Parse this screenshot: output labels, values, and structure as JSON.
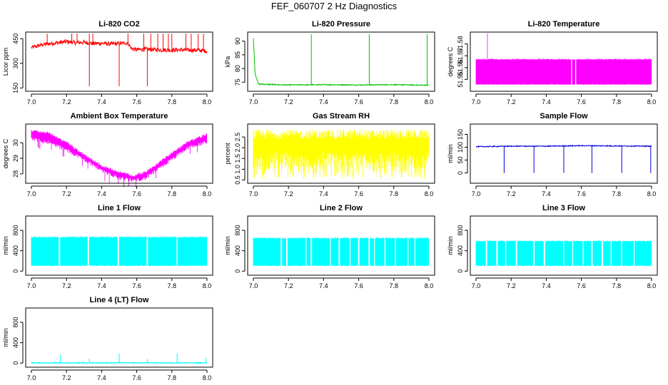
{
  "figure_title": "FEF_060707  2 Hz Diagnostics",
  "chart_data": [
    {
      "type": "line",
      "title": "Li-820 CO2",
      "ylabel": "Licor ppm",
      "xlabel": "",
      "color": "#ff0000",
      "xlim": [
        7.0,
        8.0
      ],
      "ylim": [
        130,
        490
      ],
      "xticks": [
        "7.0",
        "7.2",
        "7.4",
        "7.6",
        "7.8",
        "8.0"
      ],
      "yticks": [
        "150",
        "300",
        "450"
      ],
      "series": [
        {
          "name": "CO2",
          "x": [
            7.0,
            7.05,
            7.1,
            7.15,
            7.2,
            7.25,
            7.3,
            7.35,
            7.4,
            7.45,
            7.5,
            7.55,
            7.57,
            7.6,
            7.65,
            7.7,
            7.75,
            7.8,
            7.85,
            7.9,
            7.95,
            8.0
          ],
          "y": [
            395,
            410,
            420,
            425,
            432,
            425,
            428,
            420,
            422,
            418,
            420,
            425,
            390,
            383,
            385,
            383,
            382,
            380,
            382,
            380,
            380,
            375
          ]
        }
      ],
      "spikes_up": [
        7.09,
        7.23,
        7.26,
        7.33,
        7.35,
        7.55,
        7.64,
        7.68,
        7.72,
        7.75,
        7.78,
        7.8,
        7.88,
        7.91,
        7.95,
        7.98
      ],
      "spikes_down": [
        7.33,
        7.5,
        7.66
      ],
      "spike_low_value": 160,
      "spike_high_value": 480
    },
    {
      "type": "line",
      "title": "Li-820 Pressure",
      "ylabel": "kPa",
      "xlabel": "",
      "color": "#00c000",
      "xlim": [
        7.0,
        8.0
      ],
      "ylim": [
        71.7,
        93.3
      ],
      "xticks": [
        "7.0",
        "7.2",
        "7.4",
        "7.6",
        "7.8",
        "8.0"
      ],
      "yticks": [
        "75",
        "80",
        "85",
        "90"
      ],
      "series": [
        {
          "name": "Pressure",
          "x": [
            7.0,
            7.01,
            7.03,
            7.2,
            7.4,
            7.6,
            7.8,
            8.0
          ],
          "y": [
            91,
            78,
            74.3,
            74.0,
            74.1,
            74.0,
            74.1,
            73.9
          ]
        }
      ],
      "spikes_up": [
        7.33,
        7.66,
        7.99
      ],
      "spike_high_value": 92.5
    },
    {
      "type": "area",
      "title": "Li-820 Temperature",
      "ylabel": "degrees C",
      "xlabel": "",
      "color": "#ff00ff",
      "xlim": [
        7.0,
        8.0
      ],
      "ylim": [
        51.54,
        51.59
      ],
      "xticks": [
        "7.0",
        "7.2",
        "7.4",
        "7.6",
        "7.8",
        "8.0"
      ],
      "yticks": [
        "51.55",
        "51.56",
        "51.57",
        "51.58"
      ],
      "band": {
        "low": 51.5455,
        "high": 51.5675
      },
      "gaps": [
        7.545,
        7.568
      ],
      "spike_at": 7.065,
      "spike_value": 51.589
    },
    {
      "type": "area",
      "title": "Ambient Box Temperature",
      "ylabel": "degrees C",
      "xlabel": "",
      "color": "#ff00ff",
      "xlim": [
        7.0,
        8.0
      ],
      "ylim": [
        27.4,
        31.2
      ],
      "xticks": [
        "7.0",
        "7.2",
        "7.4",
        "7.6",
        "7.8",
        "8.0"
      ],
      "yticks": [
        "28",
        "29",
        "30"
      ],
      "series": [
        {
          "name": "Upper",
          "x": [
            7.0,
            7.1,
            7.2,
            7.3,
            7.4,
            7.5,
            7.58,
            7.65,
            7.7,
            7.8,
            7.9,
            8.0
          ],
          "y": [
            30.85,
            30.7,
            30.1,
            29.3,
            28.6,
            28.2,
            27.95,
            28.2,
            28.6,
            29.4,
            30.2,
            30.6
          ]
        },
        {
          "name": "Lower",
          "x": [
            7.0,
            7.1,
            7.2,
            7.3,
            7.4,
            7.5,
            7.58,
            7.65,
            7.7,
            7.8,
            7.9,
            8.0
          ],
          "y": [
            30.1,
            29.9,
            29.4,
            28.8,
            28.1,
            27.6,
            27.45,
            27.6,
            28.0,
            28.8,
            29.6,
            29.9
          ]
        }
      ]
    },
    {
      "type": "area",
      "title": "Gas Stream RH",
      "ylabel": "percent",
      "xlabel": "",
      "color": "#ffff00",
      "xlim": [
        7.0,
        8.0
      ],
      "ylim": [
        0.35,
        3.1
      ],
      "xticks": [
        "7.0",
        "7.2",
        "7.4",
        "7.6",
        "7.8",
        "8.0"
      ],
      "yticks": [
        "0.5",
        "1.0",
        "1.5",
        "2.0",
        "2.5"
      ],
      "band": {
        "low": 0.55,
        "high": 2.85,
        "core_low": 1.8,
        "core_high": 2.4
      }
    },
    {
      "type": "line",
      "title": "Sample Flow",
      "ylabel": "ml/min",
      "xlabel": "",
      "color": "#0000dd",
      "xlim": [
        7.0,
        8.0
      ],
      "ylim": [
        -40,
        190
      ],
      "xticks": [
        "7.0",
        "7.2",
        "7.4",
        "7.6",
        "7.8",
        "8.0"
      ],
      "yticks": [
        "0",
        "50",
        "100",
        "150"
      ],
      "series": [
        {
          "name": "Flow",
          "x": [
            7.0,
            7.2,
            7.4,
            7.6,
            7.8,
            8.0
          ],
          "y": [
            102,
            104,
            104,
            106,
            105,
            104
          ]
        }
      ],
      "spikes_down": [
        7.16,
        7.33,
        7.5,
        7.66,
        7.83,
        7.995
      ],
      "spike_low_value": 0
    },
    {
      "type": "area",
      "title": "Line 1 Flow",
      "ylabel": "ml/min",
      "xlabel": "",
      "color": "#00ffff",
      "xlim": [
        7.0,
        8.0
      ],
      "ylim": [
        -80,
        1080
      ],
      "xticks": [
        "7.0",
        "7.2",
        "7.4",
        "7.6",
        "7.8",
        "8.0"
      ],
      "yticks": [
        "0",
        "400",
        "800"
      ],
      "band": {
        "low": 100,
        "high": 680
      },
      "gaps": [
        7.16,
        7.325,
        7.495,
        7.66,
        7.83
      ]
    },
    {
      "type": "area",
      "title": "Line 2 Flow",
      "ylabel": "ml/min",
      "xlabel": "",
      "color": "#00ffff",
      "xlim": [
        7.0,
        8.0
      ],
      "ylim": [
        -80,
        1080
      ],
      "xticks": [
        "7.0",
        "7.2",
        "7.4",
        "7.6",
        "7.8",
        "8.0"
      ],
      "yticks": [
        "0",
        "400",
        "800"
      ],
      "band": {
        "low": 100,
        "high": 660
      },
      "gaps": [
        7.16,
        7.19,
        7.3,
        7.33,
        7.44,
        7.49,
        7.55,
        7.6,
        7.66,
        7.69,
        7.75,
        7.81,
        7.88,
        7.92
      ]
    },
    {
      "type": "area",
      "title": "Line 3 Flow",
      "ylabel": "ml/min",
      "xlabel": "",
      "color": "#00ffff",
      "xlim": [
        7.0,
        8.0
      ],
      "ylim": [
        -80,
        1080
      ],
      "xticks": [
        "7.0",
        "7.2",
        "7.4",
        "7.6",
        "7.8",
        "8.0"
      ],
      "yticks": [
        "0",
        "400",
        "800"
      ],
      "band": {
        "low": 100,
        "high": 600
      },
      "gaps": [
        7.06,
        7.12,
        7.17,
        7.23,
        7.33,
        7.39,
        7.5,
        7.55,
        7.61,
        7.66,
        7.72,
        7.77,
        7.83,
        7.9
      ]
    },
    {
      "type": "line",
      "title": "Line 4 (LT) Flow",
      "ylabel": "ml/min",
      "xlabel": "",
      "color": "#00ffff",
      "xlim": [
        7.0,
        8.0
      ],
      "ylim": [
        -80,
        1080
      ],
      "xticks": [
        "7.0",
        "7.2",
        "7.4",
        "7.6",
        "7.8",
        "8.0"
      ],
      "yticks": [
        "0",
        "400",
        "800"
      ],
      "series": [
        {
          "name": "Flow",
          "x": [
            7.0,
            8.0
          ],
          "y": [
            5,
            5
          ]
        }
      ],
      "spikes_up": [
        7.165,
        7.33,
        7.5,
        7.66,
        7.83,
        7.995
      ],
      "spike_heights": [
        160,
        90,
        190,
        80,
        190,
        100
      ]
    }
  ]
}
